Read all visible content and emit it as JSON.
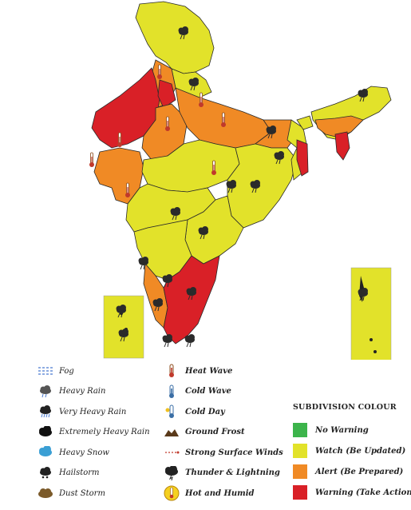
{
  "colors": {
    "no_warning": "#3cb44b",
    "watch": "#e2e22a",
    "alert": "#f08a25",
    "warning": "#d92027",
    "border": "#2a2a2a"
  },
  "legend_left": [
    {
      "icon": "fog-icon",
      "label": "Fog"
    },
    {
      "icon": "heavy-rain-icon",
      "label": "Heavy Rain"
    },
    {
      "icon": "very-heavy-rain-icon",
      "label": "Very Heavy Rain"
    },
    {
      "icon": "extremely-heavy-rain-icon",
      "label": "Extremely Heavy Rain"
    },
    {
      "icon": "heavy-snow-icon",
      "label": "Heavy Snow"
    },
    {
      "icon": "hailstorm-icon",
      "label": "Hailstorm"
    },
    {
      "icon": "dust-storm-icon",
      "label": "Dust Storm"
    }
  ],
  "legend_mid": [
    {
      "icon": "heat-wave-icon",
      "label": "Heat Wave"
    },
    {
      "icon": "cold-wave-icon",
      "label": "Cold Wave"
    },
    {
      "icon": "cold-day-icon",
      "label": "Cold Day"
    },
    {
      "icon": "ground-frost-icon",
      "label": "Ground Frost"
    },
    {
      "icon": "strong-surface-winds-icon",
      "label": "Strong Surface Winds"
    },
    {
      "icon": "thunder-lightning-icon",
      "label": "Thunder & Lightning"
    },
    {
      "icon": "hot-humid-icon",
      "label": "Hot and Humid"
    }
  ],
  "subdivision": {
    "title": "SUBDIVISION COLOUR",
    "items": [
      {
        "label": "No Warning",
        "color": "#3cb44b"
      },
      {
        "label": "Watch (Be Updated)",
        "color": "#e2e22a"
      },
      {
        "label": "Alert (Be Prepared)",
        "color": "#f08a25"
      },
      {
        "label": "Warning (Take Action)",
        "color": "#d92027"
      }
    ]
  }
}
